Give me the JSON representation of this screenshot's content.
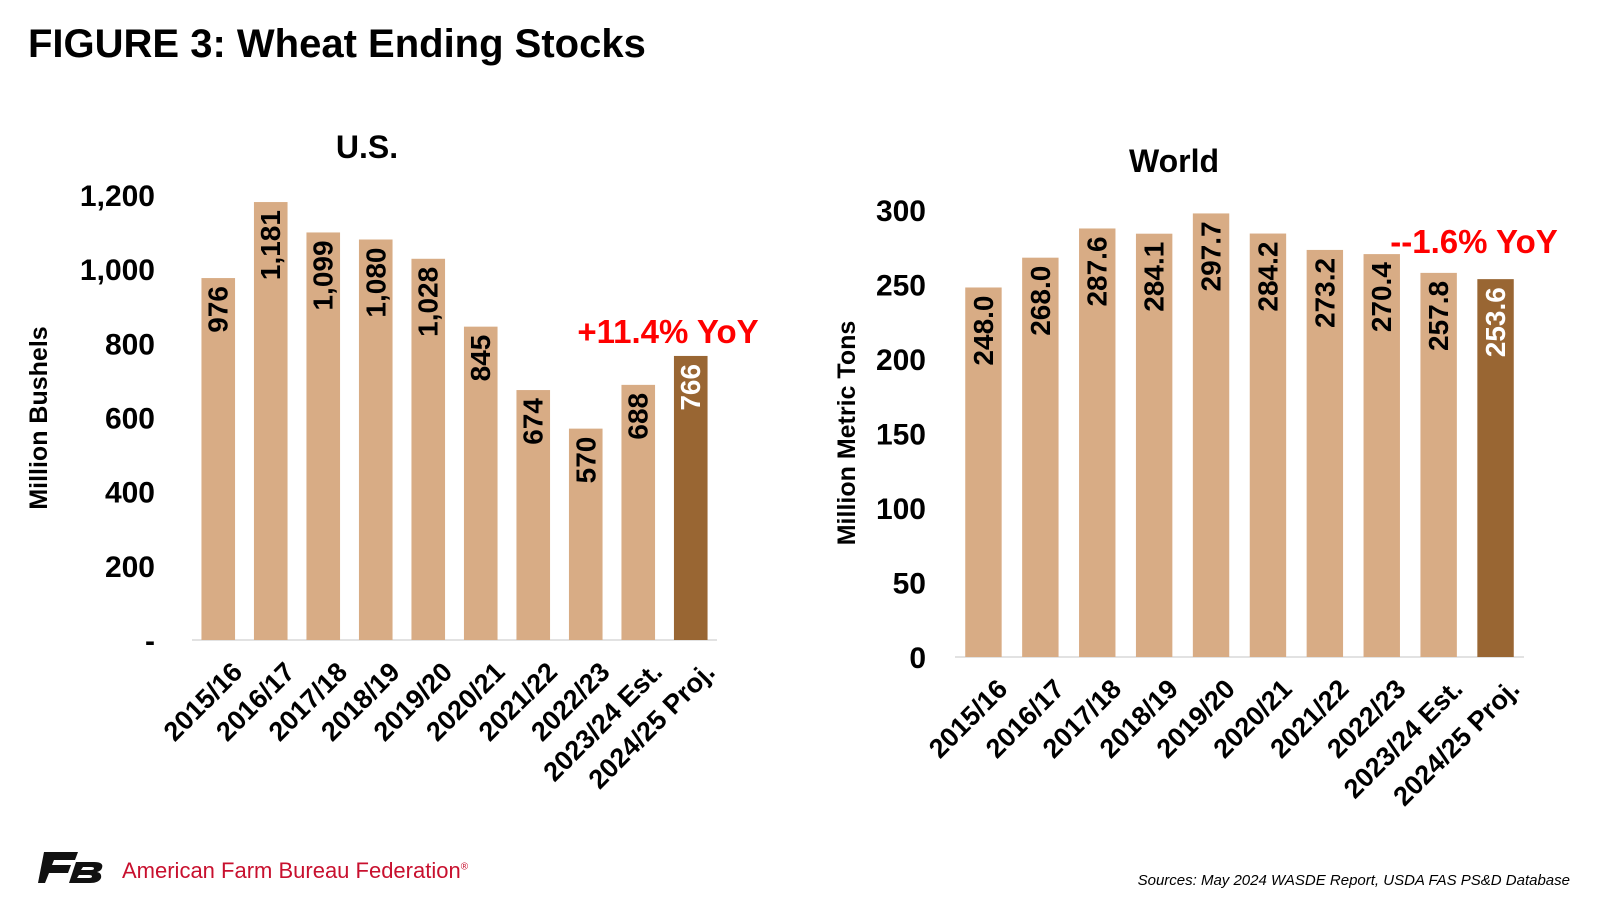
{
  "title": "FIGURE 3: Wheat Ending Stocks",
  "footer": {
    "org": "American Farm Bureau Federation",
    "org_mark": "®",
    "source": "Sources: May 2024 WASDE Report, USDA FAS PS&D Database"
  },
  "colors": {
    "bar": "#d8ac85",
    "bar_highlight": "#996633",
    "annotation": "#ff0000",
    "axis": "#d9d9d9",
    "logo": "#111111",
    "footer_org": "#c8102e"
  },
  "chart_data": [
    {
      "type": "bar",
      "title": "U.S.",
      "xlabel": "",
      "ylabel": "Million Bushels",
      "categories": [
        "2015/16",
        "2016/17",
        "2017/18",
        "2018/19",
        "2019/20",
        "2020/21",
        "2021/22",
        "2022/23",
        "2023/24 Est.",
        "2024/25 Proj."
      ],
      "values": [
        976,
        1181,
        1099,
        1080,
        1028,
        845,
        674,
        570,
        688,
        766
      ],
      "value_labels": [
        "976",
        "1,181",
        "1,099",
        "1,080",
        "1,028",
        "845",
        "674",
        "570",
        "688",
        "766"
      ],
      "ylim": [
        0,
        1200
      ],
      "yticks": [
        0,
        200,
        400,
        600,
        800,
        1000,
        1200
      ],
      "ytick_labels": [
        "-",
        "200",
        "400",
        "600",
        "800",
        "1,000",
        "1,200"
      ],
      "highlight_index": 9,
      "annotation": "+11.4% YoY",
      "grid": false
    },
    {
      "type": "bar",
      "title": "World",
      "xlabel": "",
      "ylabel": "Million Metric Tons",
      "categories": [
        "2015/16",
        "2016/17",
        "2017/18",
        "2018/19",
        "2019/20",
        "2020/21",
        "2021/22",
        "2022/23",
        "2023/24 Est.",
        "2024/25 Proj."
      ],
      "values": [
        248.0,
        268.0,
        287.6,
        284.1,
        297.7,
        284.2,
        273.2,
        270.4,
        257.8,
        253.6
      ],
      "value_labels": [
        "248.0",
        "268.0",
        "287.6",
        "284.1",
        "297.7",
        "284.2",
        "273.2",
        "270.4",
        "257.8",
        "253.6"
      ],
      "ylim": [
        0,
        300
      ],
      "yticks": [
        0,
        50,
        100,
        150,
        200,
        250,
        300
      ],
      "ytick_labels": [
        "0",
        "50",
        "100",
        "150",
        "200",
        "250",
        "300"
      ],
      "highlight_index": 9,
      "annotation": "--1.6% YoY",
      "grid": false
    }
  ]
}
